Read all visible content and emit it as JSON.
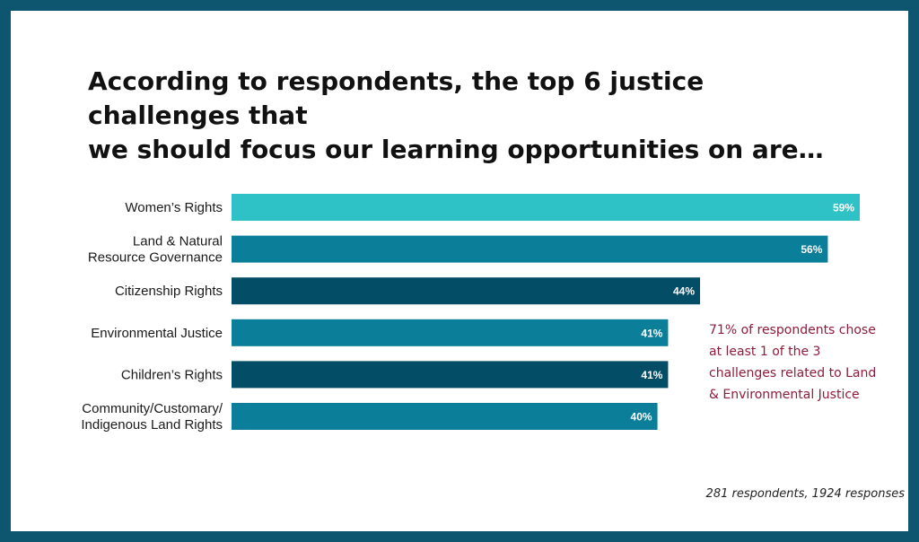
{
  "title_lines": [
    "According to respondents, the top 6 justice challenges that",
    "we should focus our learning opportunities on are…"
  ],
  "chart_data": {
    "type": "bar",
    "orientation": "horizontal",
    "categories": [
      [
        "Women’s Rights"
      ],
      [
        "Land & Natural",
        "Resource Governance"
      ],
      [
        "Citizenship Rights"
      ],
      [
        "Environmental Justice"
      ],
      [
        "Children’s Rights"
      ],
      [
        "Community/Customary/",
        "Indigenous Land Rights"
      ]
    ],
    "values": [
      59,
      56,
      44,
      41,
      41,
      40
    ],
    "value_labels": [
      "59%",
      "56%",
      "44%",
      "41%",
      "41%",
      "40%"
    ],
    "bar_colors": [
      "#2ec1c6",
      "#0b7e9a",
      "#044d66",
      "#0b7e9a",
      "#044d66",
      "#0b7e9a"
    ],
    "xlim": [
      0,
      60
    ],
    "grid": false,
    "legend": "none"
  },
  "note_lines": [
    "71% of respondents chose",
    "at least 1 of the 3",
    "challenges related to Land",
    "& Environmental Justice"
  ],
  "footnote": "281 respondents, 1924 responses"
}
